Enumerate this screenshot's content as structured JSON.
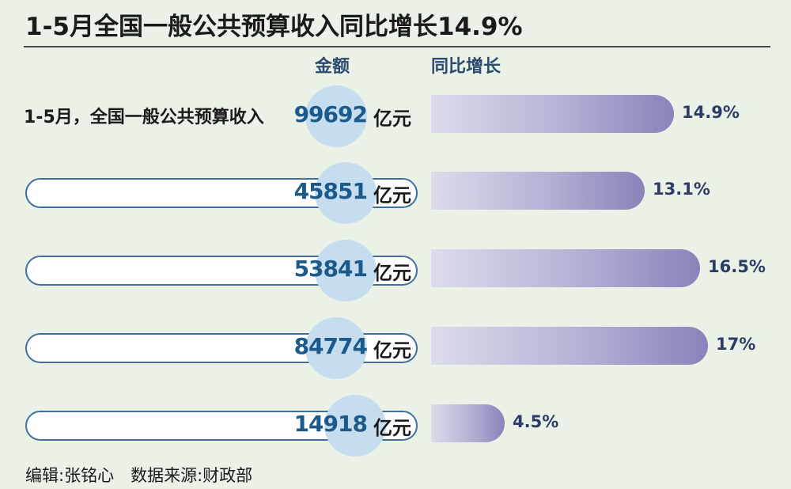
{
  "title": "1-5月全国一般公共预算收入同比增长14.9%",
  "columns": {
    "amount": "金额",
    "growth": "同比增长"
  },
  "footer": "编辑:张铭心　数据来源:财政部",
  "chart_data": {
    "type": "bar",
    "title": "1-5月全国一般公共预算收入同比增长14.9%",
    "xlabel": "",
    "ylabel": "同比增长",
    "ylim": [
      0,
      17
    ],
    "categories": [
      "1-5月，全国一般公共预算收入",
      "",
      "",
      "",
      ""
    ],
    "amounts": [
      "99692",
      "45851",
      "53841",
      "84774",
      "14918"
    ],
    "amount_unit": "亿元",
    "values": [
      14.9,
      13.1,
      16.5,
      17,
      4.5
    ],
    "value_labels": [
      "14.9%",
      "13.1%",
      "16.5%",
      "17%",
      "4.5%"
    ],
    "colors": {
      "bar_start": "#dcdcec",
      "bar_end": "#8784ba",
      "circle": "#c6dcef",
      "amount": "#1d5a8c",
      "pill_border": "#3f6f9a"
    }
  }
}
